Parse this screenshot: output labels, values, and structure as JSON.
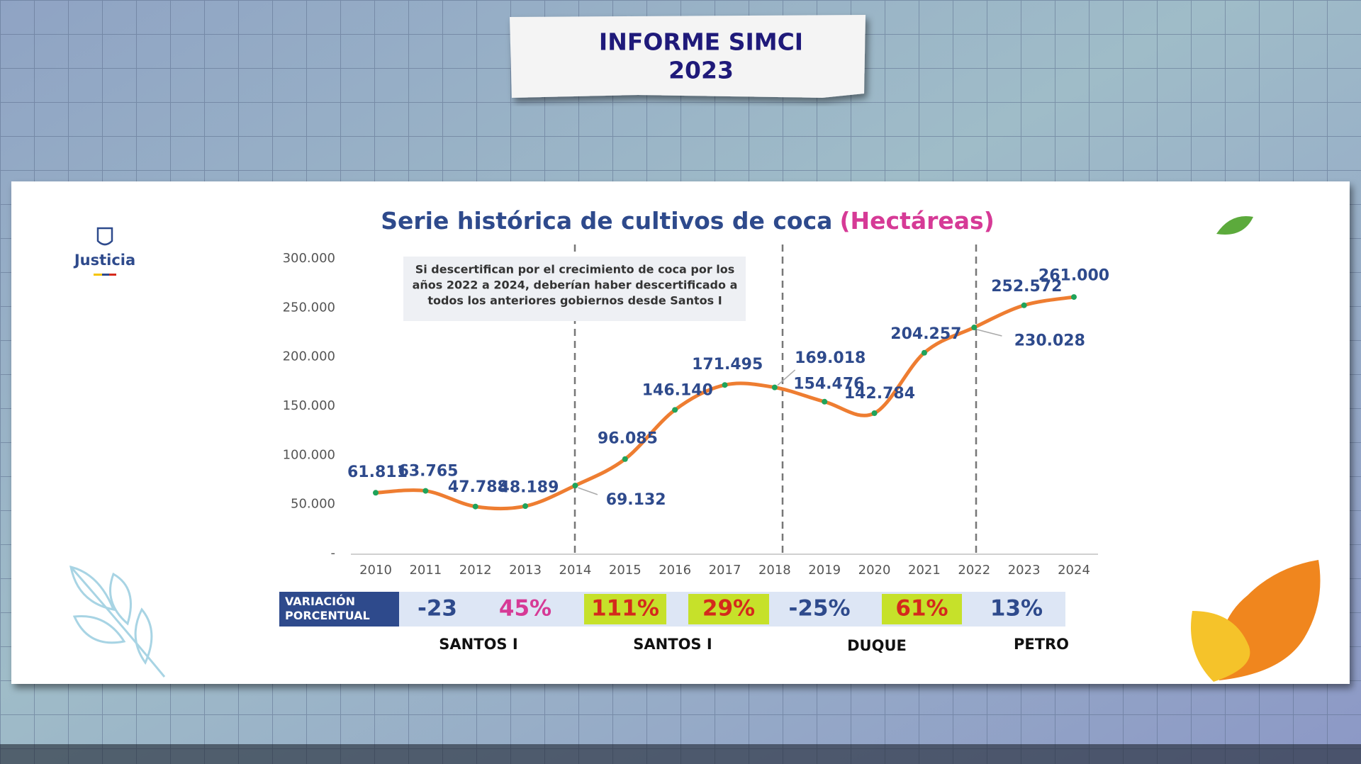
{
  "header": {
    "title": "INFORME SIMCI",
    "year": "2023"
  },
  "logo": "Justicia",
  "chart_data": {
    "type": "line",
    "title": "Serie histórica de cultivos de coca",
    "title_unit": "(Hectáreas)",
    "annotation": [
      "Si descertifican por el crecimiento de coca por los",
      "años 2022 a 2024, deberían haber descertificado a",
      "todos los anteriores gobiernos desde Santos I"
    ],
    "categories": [
      "2010",
      "2011",
      "2012",
      "2013",
      "2014",
      "2015",
      "2016",
      "2017",
      "2018",
      "2019",
      "2020",
      "2021",
      "2022",
      "2023",
      "2024"
    ],
    "series": [
      {
        "name": "Cultivos de coca",
        "color": "#ee7d31",
        "values": [
          61811,
          63765,
          47788,
          48189,
          69132,
          96085,
          146140,
          171495,
          169018,
          154476,
          142784,
          204257,
          230028,
          252572,
          261000
        ],
        "value_labels": [
          "61.811",
          "63.765",
          "47.788",
          "48.189",
          "69.132",
          "96.085",
          "146.140",
          "171.495",
          "169.018",
          "154.476",
          "142.784",
          "204.257",
          "230.028",
          "252.572",
          "261.000"
        ]
      }
    ],
    "ylim": [
      0,
      300000
    ],
    "yticks": [
      {
        "value": 0,
        "label": "-"
      },
      {
        "value": 50000,
        "label": "50.000"
      },
      {
        "value": 100000,
        "label": "100.000"
      },
      {
        "value": 150000,
        "label": "150.000"
      },
      {
        "value": 200000,
        "label": "200.000"
      },
      {
        "value": 250000,
        "label": "250.000"
      },
      {
        "value": 300000,
        "label": "300.000"
      }
    ],
    "marker_color": "#1fa35a"
  },
  "variation": {
    "label": "VARIACIÓN PORCENTUAL",
    "cells": [
      {
        "text": "-23",
        "bg": "#dde6f5",
        "color": "#2e4a8c"
      },
      {
        "text": "45%",
        "bg": "#dde6f5",
        "color": "#d63a96"
      },
      {
        "text": "111%",
        "bg": "#c6e12a",
        "color": "#d42a1c"
      },
      {
        "text": "29%",
        "bg": "#c6e12a",
        "color": "#d42a1c"
      },
      {
        "text": "-25%",
        "bg": "#dde6f5",
        "color": "#2e4a8c"
      },
      {
        "text": "61%",
        "bg": "#c6e12a",
        "color": "#d42a1c"
      },
      {
        "text": "13%",
        "bg": "#dde6f5",
        "color": "#2e4a8c"
      }
    ]
  },
  "governments": [
    "SANTOS I",
    "SANTOS I",
    "DUQUE",
    "PETRO"
  ]
}
